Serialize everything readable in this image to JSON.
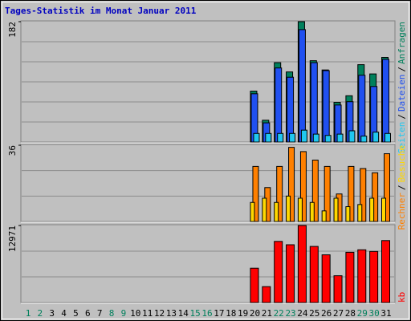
{
  "chart_data": [
    {
      "type": "bar",
      "title": "Tages-Statistik im Monat Januar 2011",
      "legend_separator": "/",
      "ylim": [
        0,
        182
      ],
      "yticks": [
        182
      ],
      "categories": [
        "1",
        "2",
        "3",
        "4",
        "5",
        "6",
        "7",
        "8",
        "9",
        "10",
        "11",
        "12",
        "13",
        "14",
        "15",
        "16",
        "17",
        "18",
        "19",
        "20",
        "21",
        "22",
        "23",
        "24",
        "25",
        "26",
        "27",
        "28",
        "29",
        "30",
        "31"
      ],
      "series": [
        {
          "name": "Seiten",
          "color": "#20c8f0",
          "values": [
            0,
            0,
            0,
            0,
            0,
            0,
            0,
            0,
            0,
            0,
            0,
            0,
            0,
            0,
            0,
            0,
            0,
            0,
            0,
            13,
            13,
            13,
            13,
            18,
            12,
            10,
            12,
            17,
            9,
            15,
            13
          ]
        },
        {
          "name": "Dateien",
          "color": "#2050f0",
          "values": [
            0,
            0,
            0,
            0,
            0,
            0,
            0,
            0,
            0,
            0,
            0,
            0,
            0,
            0,
            0,
            0,
            0,
            0,
            0,
            73,
            29,
            112,
            98,
            170,
            120,
            108,
            56,
            61,
            101,
            84,
            125
          ]
        },
        {
          "name": "Anfragen",
          "color": "#00805c",
          "values": [
            0,
            0,
            0,
            0,
            0,
            0,
            0,
            0,
            0,
            0,
            0,
            0,
            0,
            0,
            0,
            0,
            0,
            0,
            0,
            77,
            33,
            120,
            106,
            182,
            123,
            109,
            60,
            70,
            117,
            103,
            128
          ]
        }
      ]
    },
    {
      "type": "bar",
      "legend_separator": "/",
      "ylim": [
        0,
        36
      ],
      "yticks": [
        36
      ],
      "series": [
        {
          "name": "Rechner",
          "color": "#ff8000",
          "values": [
            0,
            0,
            0,
            0,
            0,
            0,
            0,
            0,
            0,
            0,
            0,
            0,
            0,
            0,
            0,
            0,
            0,
            0,
            0,
            26,
            16,
            26,
            35,
            33,
            29,
            26,
            13,
            26,
            25,
            23,
            32
          ]
        },
        {
          "name": "Besuche",
          "color": "#ffd800",
          "values": [
            0,
            0,
            0,
            0,
            0,
            0,
            0,
            0,
            0,
            0,
            0,
            0,
            0,
            0,
            0,
            0,
            0,
            0,
            0,
            9,
            11,
            9,
            12,
            11,
            9,
            5,
            11,
            7,
            8,
            11,
            11
          ]
        }
      ]
    },
    {
      "type": "bar",
      "ylim": [
        0,
        12971
      ],
      "yticks": [
        12971
      ],
      "categories": [
        "1",
        "2",
        "3",
        "4",
        "5",
        "6",
        "7",
        "8",
        "9",
        "10",
        "11",
        "12",
        "13",
        "14",
        "15",
        "16",
        "17",
        "18",
        "19",
        "20",
        "21",
        "22",
        "23",
        "24",
        "25",
        "26",
        "27",
        "28",
        "29",
        "30",
        "31"
      ],
      "category_colors": [
        "#00805c",
        "#00805c",
        "#000",
        "#000",
        "#000",
        "#000",
        "#000",
        "#00805c",
        "#00805c",
        "#000",
        "#000",
        "#000",
        "#000",
        "#000",
        "#00805c",
        "#00805c",
        "#000",
        "#000",
        "#000",
        "#000",
        "#000",
        "#00805c",
        "#00805c",
        "#000",
        "#000",
        "#000",
        "#000",
        "#000",
        "#00805c",
        "#00805c",
        "#000"
      ],
      "series": [
        {
          "name": "kb",
          "color": "#ff0000",
          "values": [
            0,
            0,
            0,
            0,
            0,
            0,
            0,
            0,
            0,
            0,
            0,
            0,
            0,
            0,
            0,
            0,
            0,
            0,
            0,
            5781,
            2679,
            10292,
            9728,
            12971,
            9446,
            8036,
            4512,
            8459,
            8882,
            8600,
            10433
          ]
        }
      ]
    }
  ]
}
